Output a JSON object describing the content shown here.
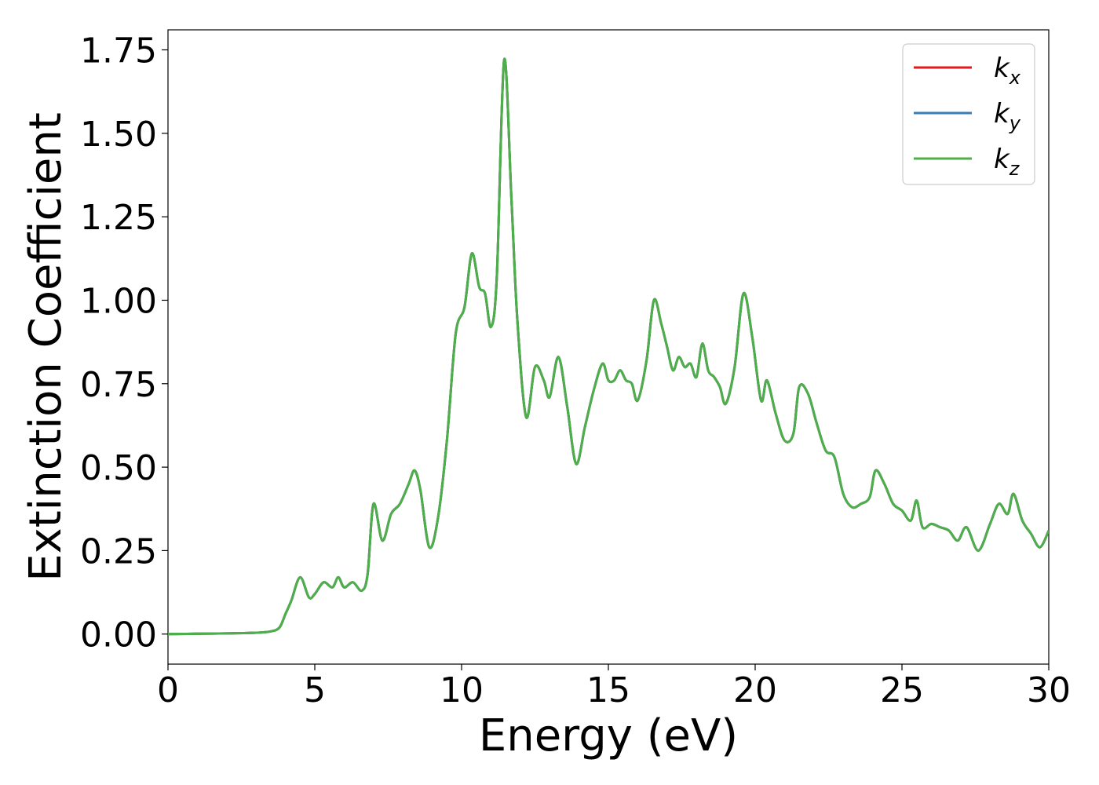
{
  "chart_data": {
    "type": "line",
    "xlabel": "Energy (eV)",
    "ylabel": "Extinction Coefficient",
    "xlim": [
      0,
      30
    ],
    "ylim": [
      -0.09,
      1.81
    ],
    "xticks": [
      0,
      5,
      10,
      15,
      20,
      25,
      30
    ],
    "xtick_labels": [
      "0",
      "5",
      "10",
      "15",
      "20",
      "25",
      "30"
    ],
    "yticks": [
      0.0,
      0.25,
      0.5,
      0.75,
      1.0,
      1.25,
      1.5,
      1.75
    ],
    "ytick_labels": [
      "0.00",
      "0.25",
      "0.50",
      "0.75",
      "1.00",
      "1.25",
      "1.50",
      "1.75"
    ],
    "grid": false,
    "legend_position": "top-right",
    "series": [
      {
        "name": "k",
        "subscript": "x",
        "color": "#e41a1c"
      },
      {
        "name": "k",
        "subscript": "y",
        "color": "#377eb8"
      },
      {
        "name": "k",
        "subscript": "z",
        "color": "#4daf4a"
      }
    ],
    "x": [
      0,
      1,
      2,
      3,
      3.5,
      3.8,
      4.0,
      4.2,
      4.5,
      4.8,
      5.0,
      5.3,
      5.6,
      5.8,
      6.0,
      6.3,
      6.6,
      6.8,
      7.0,
      7.3,
      7.6,
      7.9,
      8.2,
      8.4,
      8.6,
      8.9,
      9.2,
      9.5,
      9.8,
      10.1,
      10.35,
      10.6,
      10.8,
      11.0,
      11.2,
      11.45,
      11.7,
      11.9,
      12.2,
      12.5,
      12.8,
      13.0,
      13.3,
      13.6,
      13.9,
      14.2,
      14.5,
      14.8,
      15.0,
      15.2,
      15.4,
      15.6,
      15.8,
      16.0,
      16.3,
      16.55,
      16.8,
      17.0,
      17.2,
      17.4,
      17.6,
      17.8,
      18.0,
      18.2,
      18.4,
      18.6,
      18.8,
      19.0,
      19.3,
      19.6,
      19.9,
      20.2,
      20.4,
      20.7,
      21.0,
      21.3,
      21.5,
      21.8,
      22.1,
      22.4,
      22.7,
      23.0,
      23.3,
      23.6,
      23.9,
      24.1,
      24.4,
      24.7,
      25.0,
      25.3,
      25.5,
      25.7,
      26.0,
      26.3,
      26.6,
      26.9,
      27.2,
      27.6,
      28.0,
      28.3,
      28.6,
      28.8,
      29.1,
      29.4,
      29.7,
      30.0
    ],
    "y": [
      0.0,
      0.001,
      0.002,
      0.004,
      0.008,
      0.02,
      0.06,
      0.1,
      0.17,
      0.11,
      0.12,
      0.155,
      0.14,
      0.17,
      0.14,
      0.155,
      0.13,
      0.18,
      0.39,
      0.28,
      0.36,
      0.39,
      0.45,
      0.49,
      0.43,
      0.26,
      0.35,
      0.58,
      0.9,
      0.98,
      1.14,
      1.04,
      1.02,
      0.92,
      1.07,
      1.72,
      1.3,
      0.94,
      0.65,
      0.8,
      0.76,
      0.71,
      0.83,
      0.68,
      0.51,
      0.62,
      0.73,
      0.81,
      0.76,
      0.76,
      0.79,
      0.76,
      0.75,
      0.7,
      0.82,
      1.0,
      0.93,
      0.86,
      0.79,
      0.83,
      0.8,
      0.81,
      0.77,
      0.87,
      0.79,
      0.77,
      0.74,
      0.69,
      0.8,
      1.02,
      0.89,
      0.7,
      0.76,
      0.66,
      0.58,
      0.6,
      0.74,
      0.72,
      0.63,
      0.55,
      0.53,
      0.42,
      0.38,
      0.39,
      0.41,
      0.49,
      0.45,
      0.39,
      0.37,
      0.34,
      0.4,
      0.32,
      0.33,
      0.32,
      0.31,
      0.28,
      0.32,
      0.25,
      0.33,
      0.39,
      0.36,
      0.42,
      0.34,
      0.3,
      0.26,
      0.31
    ]
  }
}
